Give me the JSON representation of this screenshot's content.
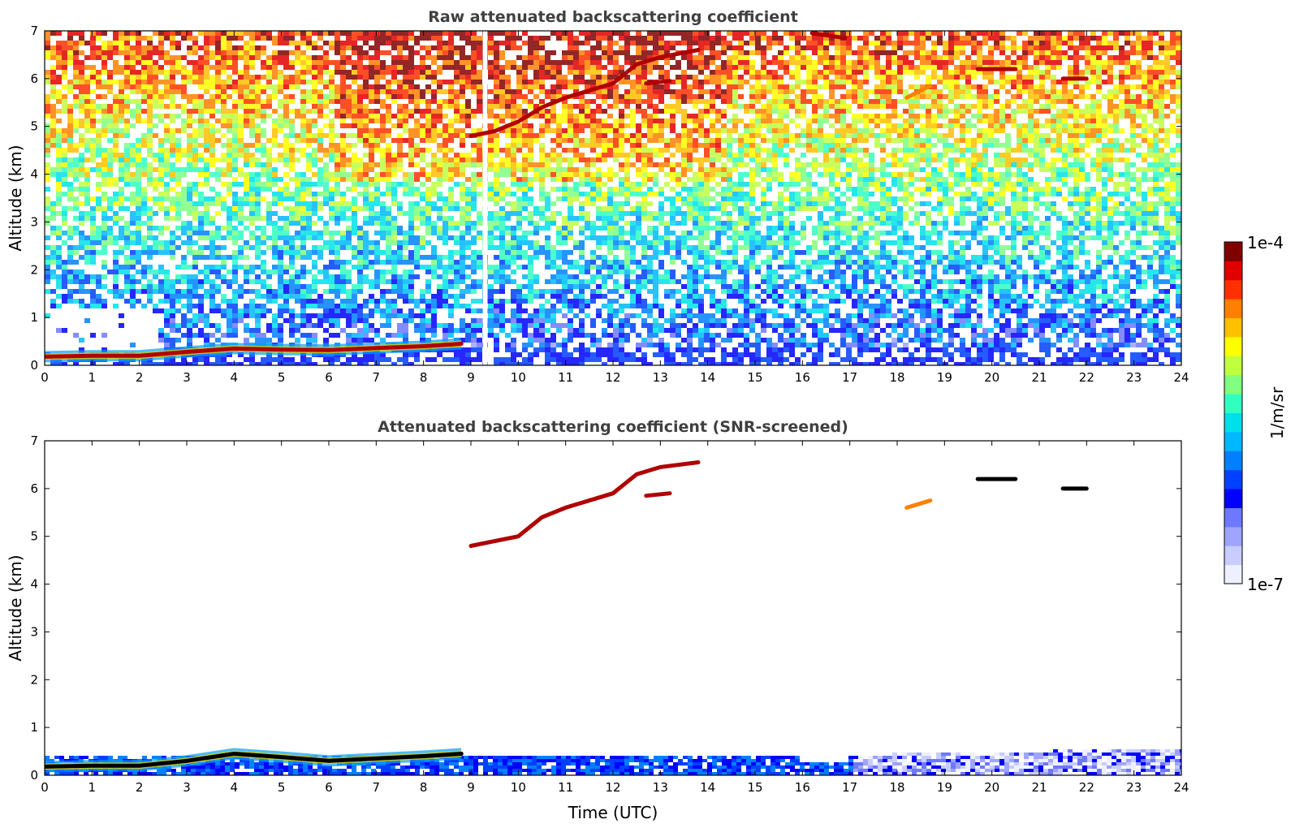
{
  "chart_data": [
    {
      "type": "heatmap",
      "title": "Raw attenuated backscattering coefficient",
      "xlabel": "",
      "ylabel": "Altitude (km)",
      "xlim": [
        0,
        24
      ],
      "ylim": [
        0,
        7
      ],
      "xticks": [
        0,
        1,
        2,
        3,
        4,
        5,
        6,
        7,
        8,
        9,
        10,
        11,
        12,
        13,
        14,
        15,
        16,
        17,
        18,
        19,
        20,
        21,
        22,
        23,
        24
      ],
      "yticks": [
        0,
        1,
        2,
        3,
        4,
        5,
        6,
        7
      ],
      "grid": false,
      "background": "noisy backscatter field, high signal aloft (yellow/red), low near surface (blue)",
      "data_gap": {
        "x": [
          9.25,
          9.35
        ],
        "color": "#ffffff"
      },
      "features": [
        {
          "name": "boundary layer top",
          "points": [
            [
              0,
              0.18
            ],
            [
              1,
              0.2
            ],
            [
              2,
              0.2
            ],
            [
              3,
              0.28
            ],
            [
              4,
              0.35
            ],
            [
              5,
              0.33
            ],
            [
              6,
              0.32
            ],
            [
              7,
              0.36
            ],
            [
              8,
              0.4
            ],
            [
              8.8,
              0.45
            ]
          ],
          "level": "high"
        },
        {
          "name": "mid-level cloud layer",
          "points": [
            [
              9,
              4.8
            ],
            [
              9.5,
              4.9
            ],
            [
              10,
              5.1
            ],
            [
              10.5,
              5.4
            ],
            [
              11,
              5.6
            ],
            [
              12,
              5.9
            ],
            [
              12.5,
              6.3
            ],
            [
              13,
              6.45
            ],
            [
              13.8,
              6.6
            ]
          ],
          "level": "high"
        },
        {
          "name": "secondary cloud",
          "points": [
            [
              12.7,
              5.9
            ],
            [
              13.2,
              5.95
            ]
          ],
          "level": "high"
        },
        {
          "name": "upper cloud",
          "points": [
            [
              16.2,
              6.95
            ],
            [
              16.9,
              6.85
            ]
          ],
          "level": "high"
        },
        {
          "name": "cloud patch",
          "points": [
            [
              18.2,
              5.6
            ],
            [
              18.7,
              5.85
            ]
          ],
          "level": "medium"
        },
        {
          "name": "cloud layer",
          "points": [
            [
              19.7,
              6.2
            ],
            [
              20.5,
              6.2
            ]
          ],
          "level": "high"
        },
        {
          "name": "thin cloud",
          "points": [
            [
              21.5,
              6.0
            ],
            [
              22,
              6.0
            ]
          ],
          "level": "high"
        }
      ]
    },
    {
      "type": "heatmap",
      "title": "Attenuated backscattering coefficient (SNR-screened)",
      "xlabel": "Time (UTC)",
      "ylabel": "Altitude (km)",
      "xlim": [
        0,
        24
      ],
      "ylim": [
        0,
        7
      ],
      "xticks": [
        0,
        1,
        2,
        3,
        4,
        5,
        6,
        7,
        8,
        9,
        10,
        11,
        12,
        13,
        14,
        15,
        16,
        17,
        18,
        19,
        20,
        21,
        22,
        23,
        24
      ],
      "yticks": [
        0,
        1,
        2,
        3,
        4,
        5,
        6,
        7
      ],
      "grid": false,
      "background": "white where screened",
      "features": [
        {
          "name": "boundary layer top",
          "points": [
            [
              0,
              0.18
            ],
            [
              1,
              0.2
            ],
            [
              2,
              0.2
            ],
            [
              3,
              0.3
            ],
            [
              4,
              0.45
            ],
            [
              5,
              0.38
            ],
            [
              6,
              0.3
            ],
            [
              7,
              0.35
            ],
            [
              8,
              0.4
            ],
            [
              8.8,
              0.45
            ]
          ],
          "level": "saturated"
        },
        {
          "name": "mid-level cloud layer",
          "points": [
            [
              9,
              4.8
            ],
            [
              9.5,
              4.9
            ],
            [
              10,
              5.0
            ],
            [
              10.5,
              5.4
            ],
            [
              11,
              5.6
            ],
            [
              12,
              5.9
            ],
            [
              12.5,
              6.3
            ],
            [
              13,
              6.45
            ],
            [
              13.8,
              6.55
            ]
          ],
          "level": "high"
        },
        {
          "name": "secondary cloud",
          "points": [
            [
              12.7,
              5.85
            ],
            [
              13.2,
              5.9
            ]
          ],
          "level": "high"
        },
        {
          "name": "cloud patch",
          "points": [
            [
              18.2,
              5.6
            ],
            [
              18.7,
              5.75
            ]
          ],
          "level": "medium"
        },
        {
          "name": "cloud layer",
          "points": [
            [
              19.7,
              6.2
            ],
            [
              20.5,
              6.2
            ]
          ],
          "level": "saturated"
        },
        {
          "name": "thin cloud",
          "points": [
            [
              21.5,
              6.0
            ],
            [
              22,
              6.0
            ]
          ],
          "level": "saturated"
        }
      ]
    }
  ],
  "colorbar": {
    "label": "1/m/sr",
    "max_label": "1e-4",
    "min_label": "1e-7",
    "colormap": "jet",
    "colors": [
      "#eef0ff",
      "#c8ccff",
      "#9ea4ff",
      "#6e78ff",
      "#0000ff",
      "#0040ff",
      "#0080ff",
      "#00b8ff",
      "#00e0e8",
      "#30ffc0",
      "#80ff80",
      "#c0ff40",
      "#ffff00",
      "#ffc000",
      "#ff8000",
      "#ff3000",
      "#e00000",
      "#800000"
    ]
  }
}
